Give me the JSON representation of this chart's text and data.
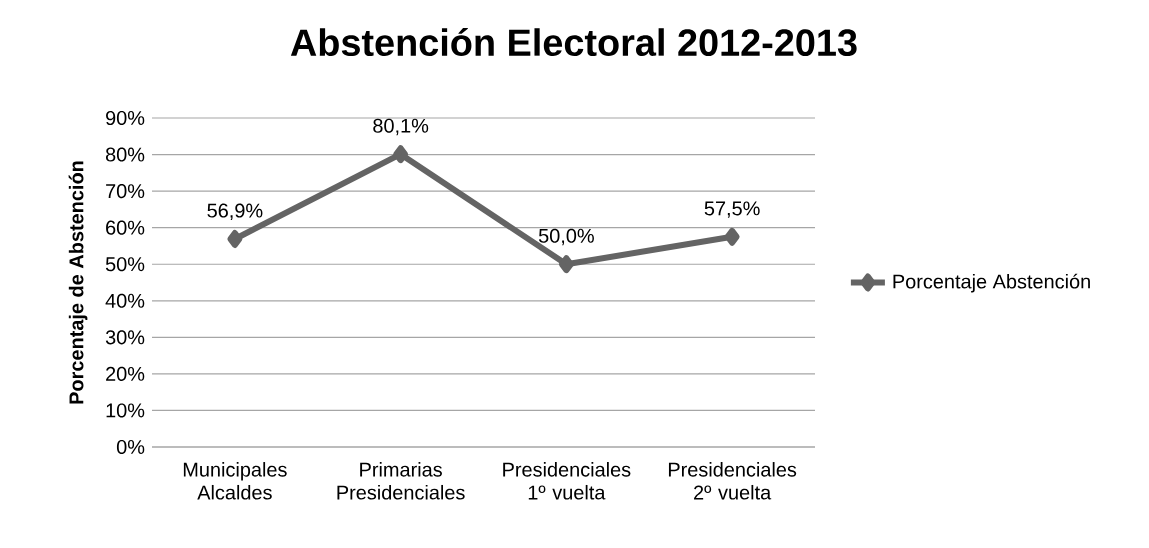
{
  "chart_data": {
    "type": "line",
    "title": "Abstención Electoral 2012-2013",
    "ylabel": "Porcentaje de Abstención",
    "categories": [
      "Municipales Alcaldes",
      "Primarias Presidenciales",
      "Presidenciales 1º vuelta",
      "Presidenciales 2º vuelta"
    ],
    "series": [
      {
        "name": "Porcentaje Abstención",
        "color": "#646464",
        "values": [
          56.9,
          80.1,
          50.0,
          57.5
        ],
        "value_labels": [
          "56,9%",
          "80,1%",
          "50,0%",
          "57,5%"
        ]
      }
    ],
    "ylim": [
      0,
      90
    ],
    "yticks": [
      {
        "value": 0,
        "label": "0%"
      },
      {
        "value": 10,
        "label": "10%"
      },
      {
        "value": 20,
        "label": "20%"
      },
      {
        "value": 30,
        "label": "30%"
      },
      {
        "value": 40,
        "label": "40%"
      },
      {
        "value": 50,
        "label": "50%"
      },
      {
        "value": 60,
        "label": "60%"
      },
      {
        "value": 70,
        "label": "70%"
      },
      {
        "value": 80,
        "label": "80%"
      },
      {
        "value": 90,
        "label": "90%"
      }
    ],
    "grid": "y",
    "legend": "right",
    "marker": "diamond",
    "line_style": "solid"
  }
}
